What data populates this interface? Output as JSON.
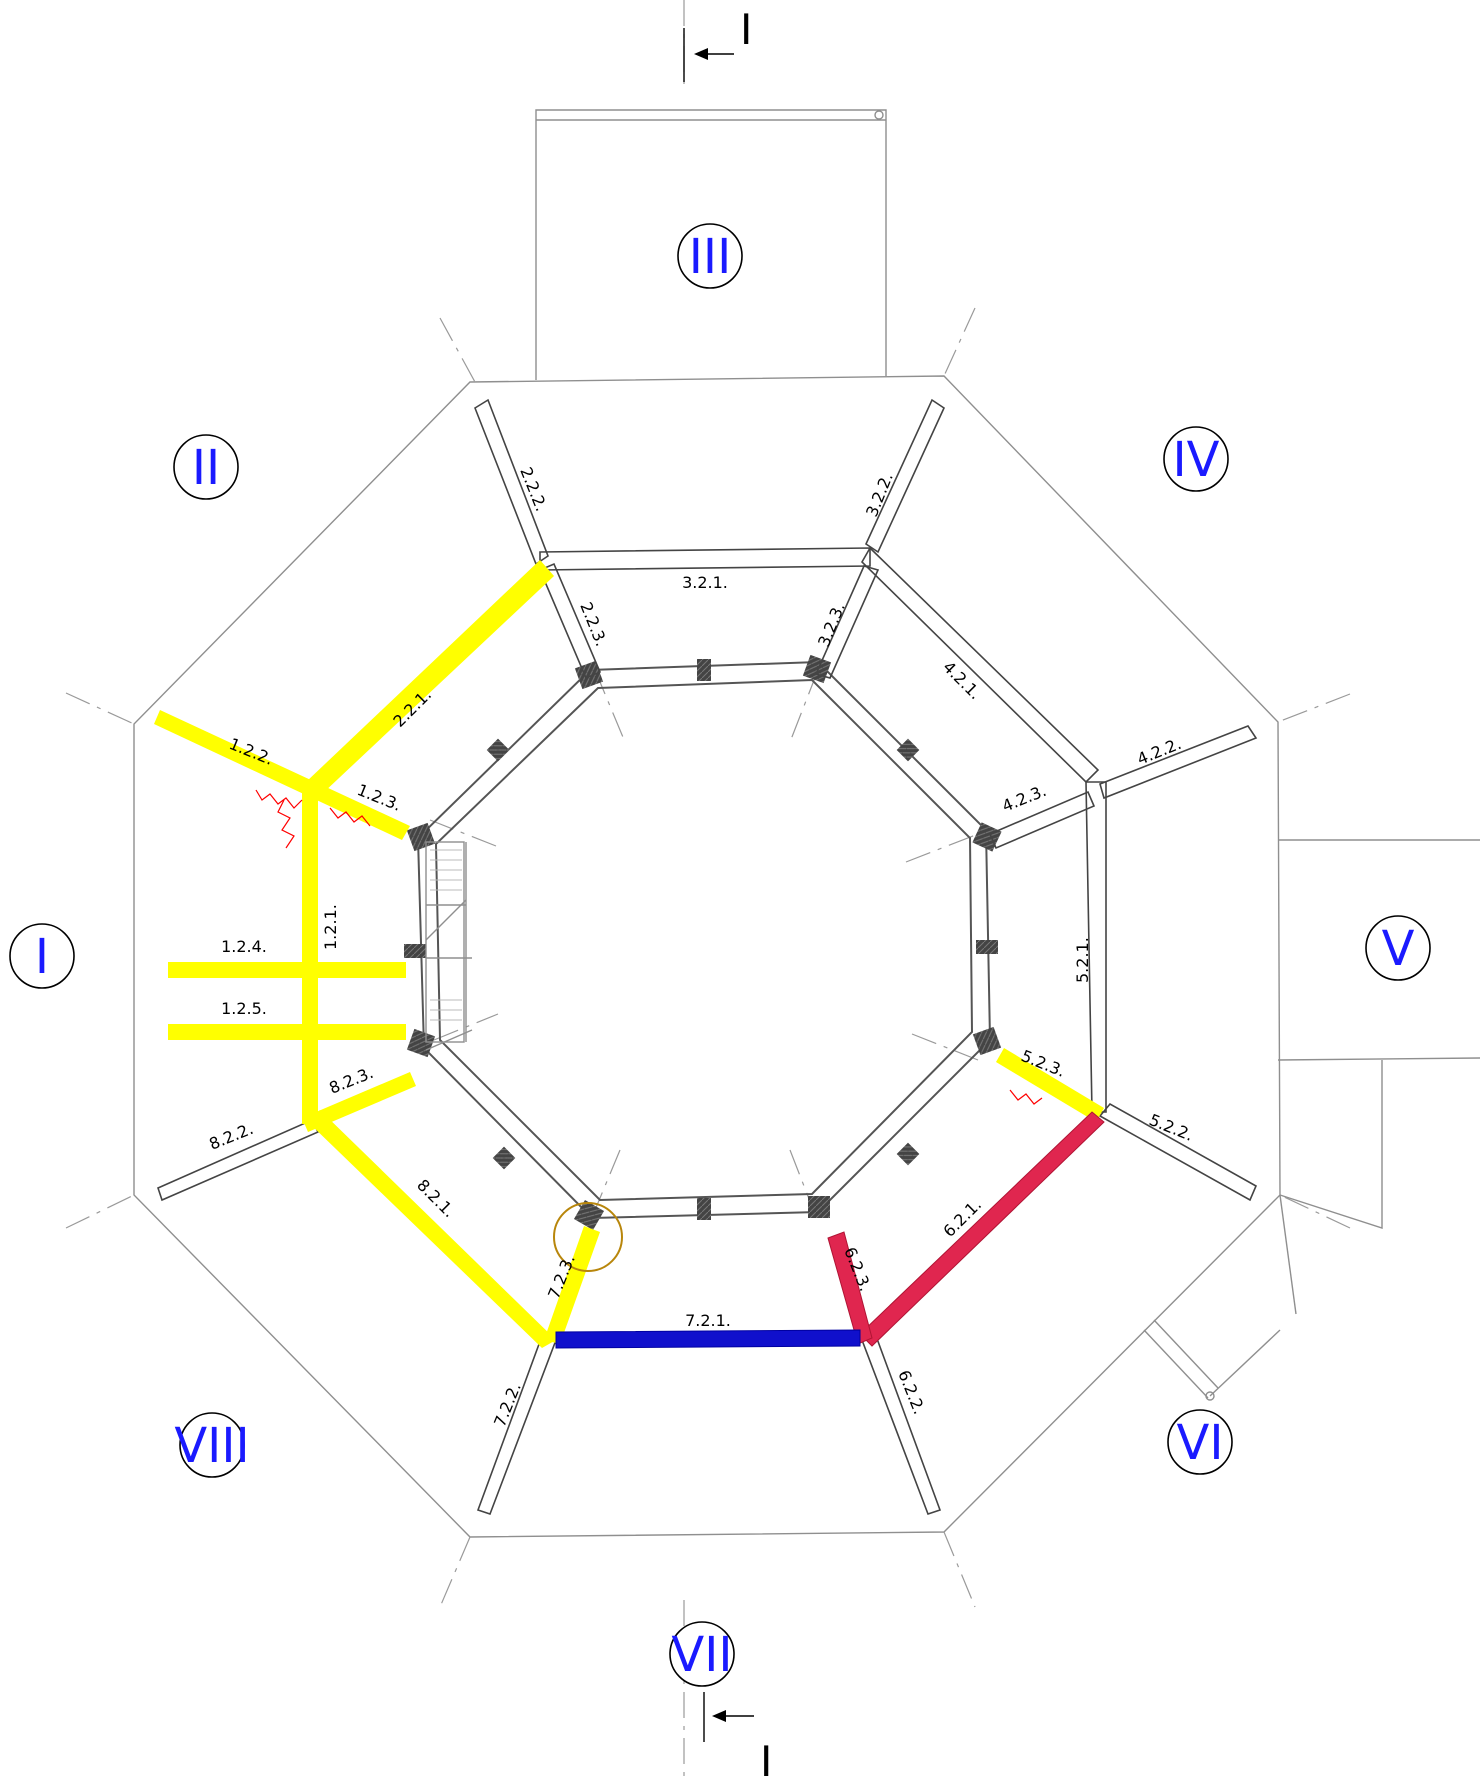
{
  "sectors": [
    "I",
    "II",
    "III",
    "IV",
    "V",
    "VI",
    "VII",
    "VIII"
  ],
  "section_marker": "I",
  "beams": {
    "b_1_2_1": "1.2.1.",
    "b_1_2_2": "1.2.2.",
    "b_1_2_3": "1.2.3.",
    "b_1_2_4": "1.2.4.",
    "b_1_2_5": "1.2.5.",
    "b_2_2_1": "2.2.1.",
    "b_2_2_2": "2.2.2.",
    "b_2_2_3": "2.2.3.",
    "b_3_2_1": "3.2.1.",
    "b_3_2_2": "3.2.2.",
    "b_3_2_3": "3.2.3.",
    "b_4_2_1": "4.2.1.",
    "b_4_2_2": "4.2.2.",
    "b_4_2_3": "4.2.3.",
    "b_5_2_1": "5.2.1.",
    "b_5_2_2": "5.2.2.",
    "b_5_2_3": "5.2.3.",
    "b_6_2_1": "6.2.1.",
    "b_6_2_2": "6.2.2.",
    "b_6_2_3": "6.2.3.",
    "b_7_2_1": "7.2.1.",
    "b_7_2_2": "7.2.2.",
    "b_7_2_3": "7.2.3.",
    "b_8_2_1": "8.2.1.",
    "b_8_2_2": "8.2.2.",
    "b_8_2_3": "8.2.3."
  },
  "colors": {
    "yellow_highlight": "#ffff00",
    "red_highlight": "#e0264f",
    "blue_highlight": "#1010cc",
    "sector_text": "#1a1aff",
    "marker_circle": "#b8860b",
    "crack_marks": "#ff0000"
  }
}
